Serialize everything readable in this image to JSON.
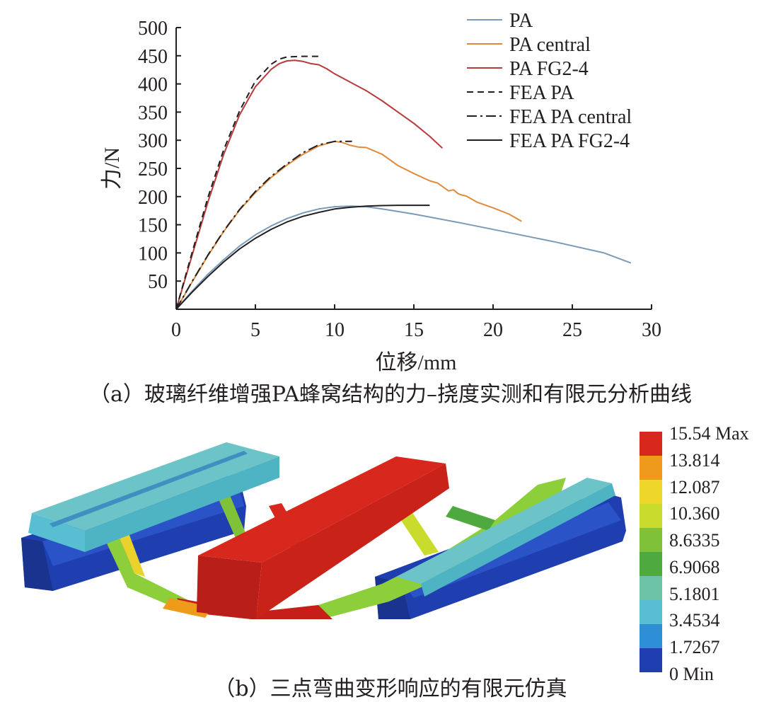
{
  "chart_data": {
    "type": "line",
    "xlabel": "位移/mm",
    "ylabel": "力/N",
    "xlim": [
      0,
      30
    ],
    "ylim": [
      0,
      500
    ],
    "xticks": [
      0,
      5,
      10,
      15,
      20,
      25,
      30
    ],
    "yticks": [
      50,
      100,
      150,
      200,
      250,
      300,
      350,
      400,
      450,
      500
    ],
    "grid": false,
    "legend_position": "top-right",
    "series": [
      {
        "name": "PA",
        "color": "#7a9bb8",
        "dash": "solid",
        "x": [
          0,
          1,
          2,
          3,
          4,
          5,
          6,
          7,
          8,
          9,
          10,
          11,
          12,
          13,
          15,
          18,
          21,
          24,
          27,
          28.7
        ],
        "y": [
          0,
          32,
          62,
          88,
          112,
          132,
          148,
          161,
          171,
          178,
          182,
          183,
          182,
          178,
          169,
          153,
          136,
          119,
          100,
          82
        ]
      },
      {
        "name": "PA central",
        "color": "#e08a3c",
        "dash": "solid",
        "x": [
          0,
          1,
          2,
          3,
          4,
          5,
          6,
          7,
          8,
          9,
          10,
          10.5,
          11,
          11.5,
          12,
          13,
          14,
          15,
          16,
          16.5,
          17,
          17.2,
          17.5,
          17.8,
          18,
          18.3,
          19,
          20,
          21,
          21.8
        ],
        "y": [
          0,
          48,
          95,
          138,
          176,
          207,
          234,
          256,
          275,
          290,
          298,
          296,
          291,
          288,
          287,
          275,
          255,
          241,
          228,
          224,
          214,
          210,
          212,
          205,
          203,
          201,
          190,
          180,
          169,
          156
        ]
      },
      {
        "name": "PA FG2-4",
        "color": "#b83a3a",
        "dash": "solid",
        "x": [
          0,
          1,
          2,
          3,
          4,
          5,
          6,
          6.5,
          7,
          7.5,
          8,
          8.5,
          9,
          9.5,
          10,
          11,
          12,
          13,
          14,
          15,
          16,
          16.8
        ],
        "y": [
          0,
          95,
          190,
          275,
          345,
          395,
          426,
          436,
          441,
          442,
          440,
          436,
          434,
          427,
          418,
          403,
          388,
          370,
          350,
          330,
          307,
          286
        ]
      },
      {
        "name": "FEA PA",
        "color": "#231f20",
        "dash": "dashed",
        "x": [
          0,
          1,
          2,
          3,
          4,
          5,
          6,
          6.5,
          7,
          8,
          9.2
        ],
        "y": [
          0,
          100,
          198,
          283,
          352,
          405,
          435,
          444,
          448,
          449,
          449
        ]
      },
      {
        "name": "FEA PA central",
        "color": "#231f20",
        "dash": "dashdot",
        "x": [
          0,
          1,
          2,
          3,
          4,
          5,
          6,
          7,
          8,
          9,
          10,
          11.1
        ],
        "y": [
          0,
          49,
          96,
          139,
          177,
          209,
          236,
          258,
          278,
          292,
          298,
          298
        ]
      },
      {
        "name": "FEA PA FG2-4",
        "color": "#231f20",
        "dash": "solid",
        "x": [
          0,
          1,
          2,
          3,
          4,
          5,
          6,
          7,
          8,
          9,
          10,
          11,
          12,
          13,
          14,
          15,
          16
        ],
        "y": [
          0,
          30,
          58,
          84,
          107,
          126,
          142,
          155,
          165,
          172,
          178,
          181,
          183,
          184,
          184.5,
          184.5,
          184.5
        ]
      }
    ]
  },
  "captions": {
    "a": "（a）玻璃纤维增强PA蜂窝结构的力–挠度实测和有限元分析曲线",
    "b": "（b）三点弯曲变形响应的有限元仿真"
  },
  "colorbar": {
    "labels": [
      "15.54 Max",
      "13.814",
      "12.087",
      "10.360",
      "8.6335",
      "6.9068",
      "5.1801",
      "3.4534",
      "1.7267",
      "0 Min"
    ],
    "colors": [
      "#d8281e",
      "#ef9a1a",
      "#eed62a",
      "#c9db2c",
      "#7fc23a",
      "#4eaa3e",
      "#6cc3a8",
      "#58bfd2",
      "#2f8fd6",
      "#1f3fb0"
    ]
  }
}
